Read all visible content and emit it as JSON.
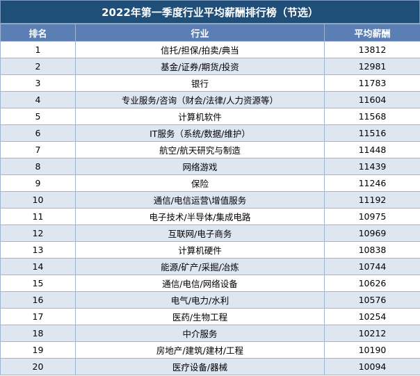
{
  "title": "2022年第一季度行业平均薪酬排行榜（节选）",
  "columns": {
    "rank": "排名",
    "industry": "行业",
    "salary": "平均薪酬"
  },
  "rows": [
    {
      "rank": "1",
      "industry": "信托/担保/拍卖/典当",
      "salary": "13812"
    },
    {
      "rank": "2",
      "industry": "基金/证券/期货/投资",
      "salary": "12981"
    },
    {
      "rank": "3",
      "industry": "银行",
      "salary": "11783"
    },
    {
      "rank": "4",
      "industry": "专业服务/咨询（财会/法律/人力资源等）",
      "salary": "11604"
    },
    {
      "rank": "5",
      "industry": "计算机软件",
      "salary": "11568"
    },
    {
      "rank": "6",
      "industry": "IT服务（系统/数据/维护）",
      "salary": "11516"
    },
    {
      "rank": "7",
      "industry": "航空/航天研究与制造",
      "salary": "11448"
    },
    {
      "rank": "8",
      "industry": "网络游戏",
      "salary": "11439"
    },
    {
      "rank": "9",
      "industry": "保险",
      "salary": "11246"
    },
    {
      "rank": "10",
      "industry": "通信/电信运营\\增值服务",
      "salary": "11192"
    },
    {
      "rank": "11",
      "industry": "电子技术/半导体/集成电路",
      "salary": "10975"
    },
    {
      "rank": "12",
      "industry": "互联网/电子商务",
      "salary": "10969"
    },
    {
      "rank": "13",
      "industry": "计算机硬件",
      "salary": "10838"
    },
    {
      "rank": "14",
      "industry": "能源/矿产/采掘/冶炼",
      "salary": "10744"
    },
    {
      "rank": "15",
      "industry": "通信/电信/网络设备",
      "salary": "10626"
    },
    {
      "rank": "16",
      "industry": "电气/电力/水利",
      "salary": "10576"
    },
    {
      "rank": "17",
      "industry": "医药/生物工程",
      "salary": "10254"
    },
    {
      "rank": "18",
      "industry": "中介服务",
      "salary": "10212"
    },
    {
      "rank": "19",
      "industry": "房地产/建筑/建材/工程",
      "salary": "10190"
    },
    {
      "rank": "20",
      "industry": "医疗设备/器械",
      "salary": "10094"
    }
  ],
  "colors": {
    "title_bg": "#1f4e79",
    "header_bg": "#5b7fb4",
    "stripe": "#dde6f1",
    "border": "#9db5d0"
  }
}
